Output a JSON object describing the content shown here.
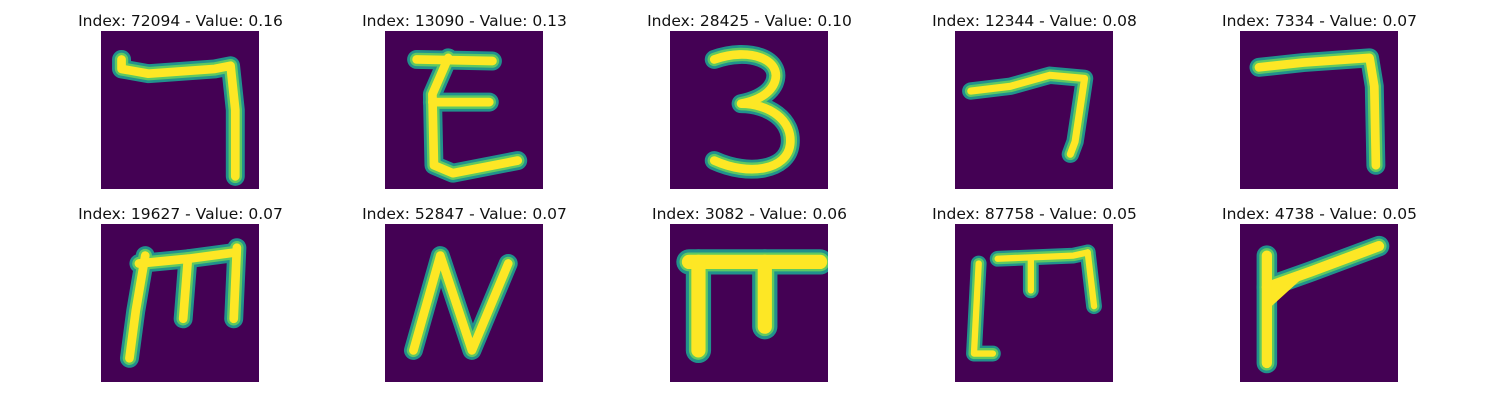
{
  "colors": {
    "background": "#440154",
    "stroke_edge": "#21918c",
    "stroke_mid": "#5ec962",
    "stroke_core": "#fde725"
  },
  "panels": [
    {
      "title": "Index: 72094 - Value: 0.16",
      "glyph_icon": "character-like-7-with-hook"
    },
    {
      "title": "Index: 13090 - Value: 0.13",
      "glyph_icon": "character-like-E"
    },
    {
      "title": "Index: 28425 - Value: 0.10",
      "glyph_icon": "character-like-3"
    },
    {
      "title": "Index: 12344 - Value: 0.08",
      "glyph_icon": "character-like-7-slanted"
    },
    {
      "title": "Index: 7334 - Value: 0.07",
      "glyph_icon": "character-like-7-tall"
    },
    {
      "title": "Index: 19627 - Value: 0.07",
      "glyph_icon": "character-like-m-with-stem"
    },
    {
      "title": "Index: 52847 - Value: 0.07",
      "glyph_icon": "character-like-N"
    },
    {
      "title": "Index: 3082 - Value: 0.06",
      "glyph_icon": "character-like-pi"
    },
    {
      "title": "Index: 87758 - Value: 0.05",
      "glyph_icon": "character-like-open-m"
    },
    {
      "title": "Index: 4738 - Value: 0.05",
      "glyph_icon": "character-like-flag"
    }
  ]
}
